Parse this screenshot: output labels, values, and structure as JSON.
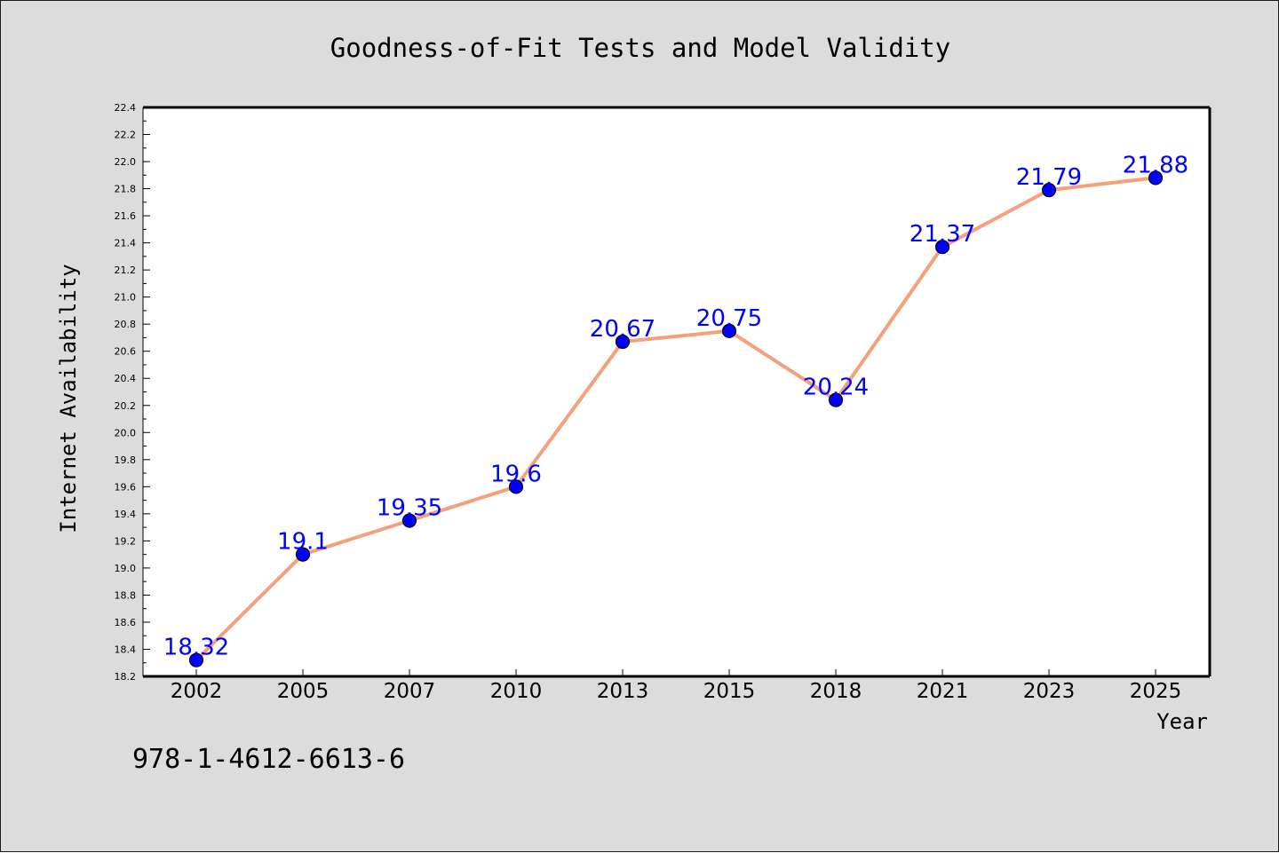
{
  "chart_data": {
    "type": "line",
    "title": "Goodness-of-Fit Tests and Model Validity",
    "xlabel": "Year",
    "ylabel": "Internet Availability",
    "categories": [
      "2002",
      "2005",
      "2007",
      "2010",
      "2013",
      "2015",
      "2018",
      "2021",
      "2023",
      "2025"
    ],
    "series": [
      {
        "values": [
          18.32,
          19.1,
          19.35,
          19.6,
          20.67,
          20.75,
          20.24,
          21.37,
          21.79,
          21.88
        ],
        "data_labels": [
          "18.32",
          "19.1",
          "19.35",
          "19.6",
          "20.67",
          "20.75",
          "20.24",
          "21.37",
          "21.79",
          "21.88"
        ],
        "line_color": "#f4a07a",
        "marker_color": "#0000ff",
        "label_color": "#0000ff"
      }
    ],
    "ylim": [
      18.2,
      22.4
    ],
    "yticks": [
      "18.2",
      "18.4",
      "18.6",
      "18.8",
      "19.0",
      "19.2",
      "19.4",
      "19.6",
      "19.8",
      "20.0",
      "20.2",
      "20.4",
      "20.6",
      "20.8",
      "21.0",
      "21.2",
      "21.4",
      "21.6",
      "21.8",
      "22.0",
      "22.2",
      "22.4"
    ],
    "grid": false,
    "legend": "none"
  },
  "annotation": {
    "text": "978-1-4612-6613-6"
  },
  "colors": {
    "figure_background": "#dcdcdc",
    "plot_background": "#ffffff",
    "axes": "#000000"
  }
}
